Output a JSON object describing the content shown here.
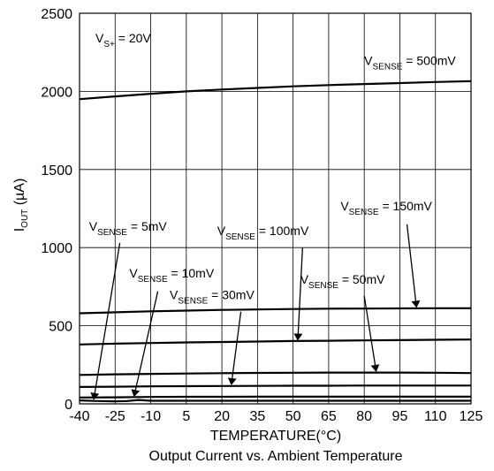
{
  "chart_data": {
    "type": "line",
    "title": "Output Current vs. Ambient Temperature",
    "xlabel": "TEMPERATURE(°C)",
    "ylabel_main": "I",
    "ylabel_sub": "OUT",
    "ylabel_rest": " (µA)",
    "xlim": [
      -40,
      125
    ],
    "ylim": [
      0,
      2500
    ],
    "x_ticks": [
      -40,
      -25,
      -10,
      5,
      20,
      35,
      50,
      65,
      80,
      95,
      110,
      125
    ],
    "y_ticks": [
      0,
      500,
      1000,
      1500,
      2000,
      2500
    ],
    "grid": true,
    "condition": {
      "main": "V",
      "sub": "S+",
      "rest": " = 20V"
    },
    "series": [
      {
        "name": "VSENSE = 500mV",
        "label_main": "V",
        "label_sub": "SENSE",
        "label_rest": " = 500mV",
        "x": [
          -40,
          -25,
          -10,
          5,
          20,
          35,
          50,
          65,
          80,
          95,
          110,
          125
        ],
        "y": [
          1950,
          1968,
          1985,
          2000,
          2012,
          2022,
          2032,
          2040,
          2047,
          2053,
          2060,
          2065
        ]
      },
      {
        "name": "VSENSE = 150mV",
        "label_main": "V",
        "label_sub": "SENSE",
        "label_rest": " = 150mV",
        "x": [
          -40,
          -25,
          -10,
          5,
          20,
          35,
          50,
          65,
          80,
          95,
          110,
          125
        ],
        "y": [
          580,
          586,
          592,
          597,
          601,
          604,
          607,
          609,
          610,
          611,
          612,
          612
        ]
      },
      {
        "name": "VSENSE = 100mV",
        "label_main": "V",
        "label_sub": "SENSE",
        "label_rest": " = 100mV",
        "x": [
          -40,
          -25,
          -10,
          5,
          20,
          35,
          50,
          65,
          80,
          95,
          110,
          125
        ],
        "y": [
          380,
          385,
          389,
          393,
          396,
          399,
          402,
          404,
          406,
          408,
          410,
          412
        ]
      },
      {
        "name": "VSENSE = 50mV",
        "label_main": "V",
        "label_sub": "SENSE",
        "label_rest": " = 50mV",
        "x": [
          -40,
          -25,
          -10,
          5,
          20,
          35,
          50,
          65,
          80,
          95,
          110,
          125
        ],
        "y": [
          185,
          189,
          192,
          194,
          196,
          198,
          199,
          200,
          200,
          200,
          199,
          197
        ]
      },
      {
        "name": "VSENSE = 30mV",
        "label_main": "V",
        "label_sub": "SENSE",
        "label_rest": " = 30mV",
        "x": [
          -40,
          -25,
          -10,
          5,
          20,
          35,
          50,
          65,
          80,
          95,
          110,
          125
        ],
        "y": [
          108,
          110,
          112,
          113,
          114,
          115,
          116,
          116,
          117,
          117,
          117,
          117
        ]
      },
      {
        "name": "VSENSE = 10mV",
        "label_main": "V",
        "label_sub": "SENSE",
        "label_rest": " = 10mV",
        "x": [
          -40,
          -25,
          -10,
          5,
          20,
          35,
          50,
          65,
          80,
          95,
          110,
          125
        ],
        "y": [
          40,
          42,
          44,
          45,
          45,
          46,
          46,
          46,
          46,
          46,
          46,
          46
        ]
      },
      {
        "name": "VSENSE = 5mV",
        "label_main": "V",
        "label_sub": "SENSE",
        "label_rest": " = 5mV",
        "x": [
          -40,
          -32,
          -25,
          -20,
          -15,
          -10,
          5,
          20,
          35,
          50,
          65,
          80,
          95,
          110,
          125
        ],
        "y": [
          22,
          18,
          16,
          18,
          25,
          20,
          20,
          20,
          20,
          20,
          20,
          20,
          20,
          20,
          20
        ]
      }
    ],
    "annotations": [
      {
        "series": 0,
        "text_x": 80,
        "text_y": 2170,
        "arrow": false
      },
      {
        "series": 1,
        "text_x": 70,
        "text_y": 1240,
        "arrow": true,
        "ax1": 98,
        "ay1": 1150,
        "ax2": 102,
        "ay2": 620
      },
      {
        "series": 2,
        "text_x": 18,
        "text_y": 1080,
        "arrow": true,
        "ax1": 54,
        "ay1": 1000,
        "ax2": 52,
        "ay2": 410
      },
      {
        "series": 3,
        "text_x": 53,
        "text_y": 770,
        "arrow": true,
        "ax1": 80,
        "ay1": 690,
        "ax2": 85,
        "ay2": 210
      },
      {
        "series": 4,
        "text_x": -2,
        "text_y": 670,
        "arrow": true,
        "ax1": 28,
        "ay1": 590,
        "ax2": 24,
        "ay2": 125
      },
      {
        "series": 5,
        "text_x": -19,
        "text_y": 810,
        "arrow": true,
        "ax1": -7,
        "ay1": 720,
        "ax2": -17,
        "ay2": 50
      },
      {
        "series": 6,
        "text_x": -36,
        "text_y": 1110,
        "arrow": true,
        "ax1": -23,
        "ay1": 1030,
        "ax2": -34,
        "ay2": 30
      }
    ]
  }
}
